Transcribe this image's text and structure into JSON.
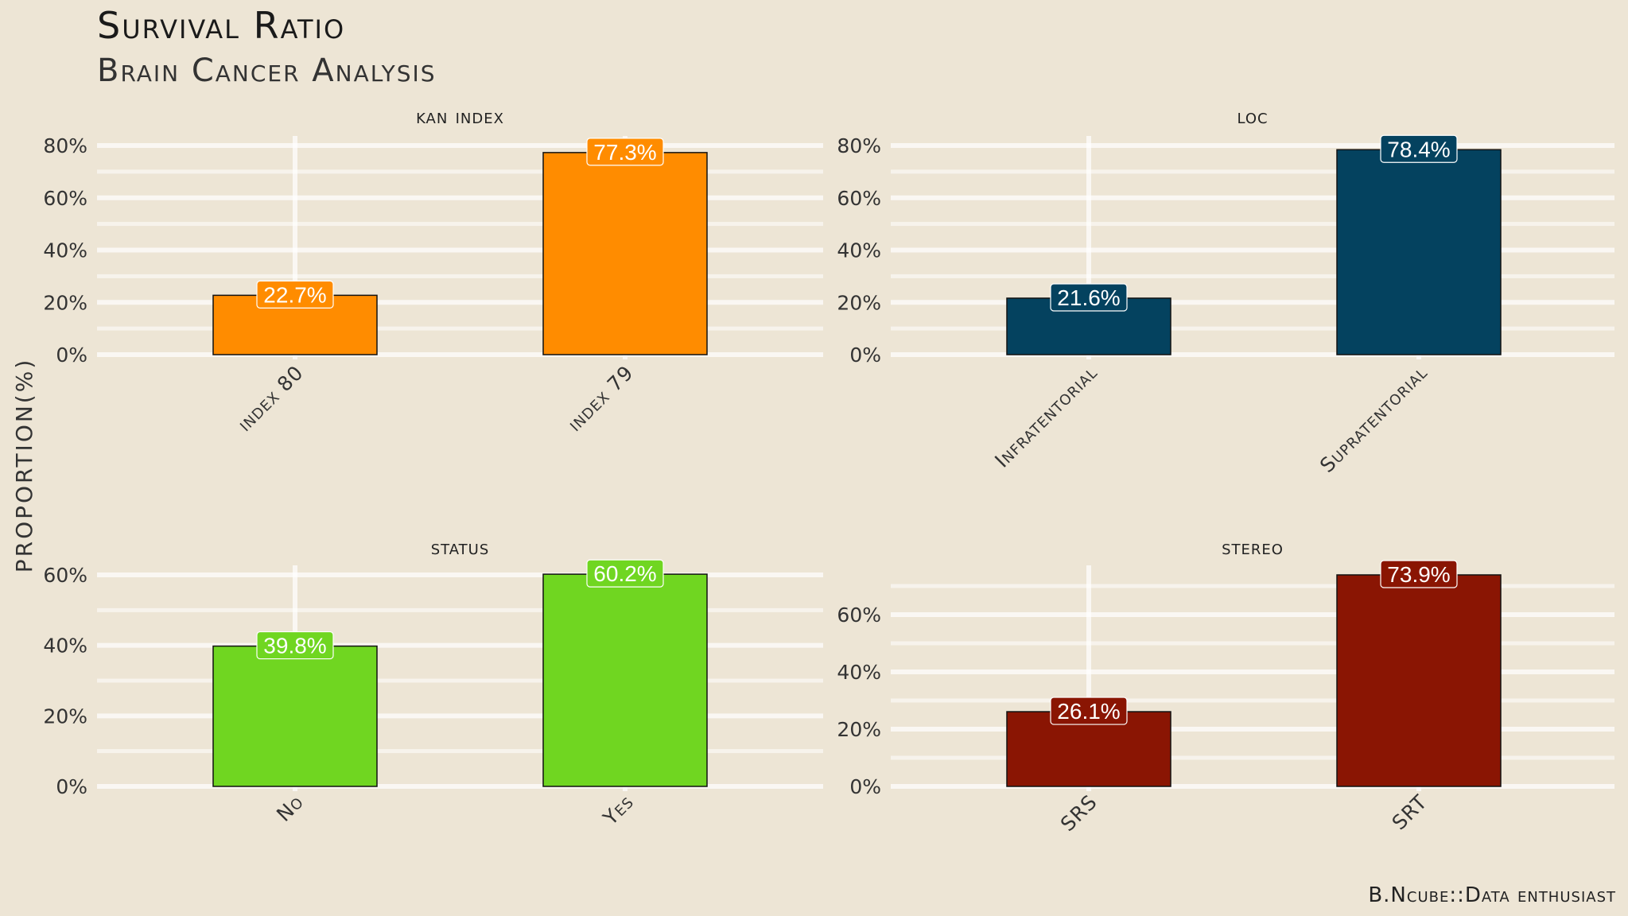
{
  "title": "Survival Ratio",
  "subtitle": "Brain Cancer Analysis",
  "caption": "B.Ncube::Data enthusiast",
  "ylabel": "PROPORTION(%)",
  "chart_data": [
    {
      "type": "bar",
      "panel": "kan index",
      "categories": [
        "index 80",
        "index 79"
      ],
      "values": [
        22.7,
        77.3
      ],
      "labels": [
        "22.7%",
        "77.3%"
      ],
      "ylim": [
        0,
        80
      ],
      "yticks": [
        0,
        20,
        40,
        60,
        80
      ],
      "ytick_labels": [
        "0%",
        "20%",
        "40%",
        "60%",
        "80%"
      ],
      "color": "#ff8c00",
      "grid": true
    },
    {
      "type": "bar",
      "panel": "loc",
      "categories": [
        "Infratentorial",
        "Supratentorial"
      ],
      "values": [
        21.6,
        78.4
      ],
      "labels": [
        "21.6%",
        "78.4%"
      ],
      "ylim": [
        0,
        80
      ],
      "yticks": [
        0,
        20,
        40,
        60,
        80
      ],
      "ytick_labels": [
        "0%",
        "20%",
        "40%",
        "60%",
        "80%"
      ],
      "color": "#04425f",
      "grid": true
    },
    {
      "type": "bar",
      "panel": "status",
      "categories": [
        "No",
        "Yes"
      ],
      "values": [
        39.8,
        60.2
      ],
      "labels": [
        "39.8%",
        "60.2%"
      ],
      "ylim": [
        0,
        60
      ],
      "yticks": [
        0,
        20,
        40,
        60
      ],
      "ytick_labels": [
        "0%",
        "20%",
        "40%",
        "60%"
      ],
      "color": "#70d621",
      "grid": true
    },
    {
      "type": "bar",
      "panel": "stereo",
      "categories": [
        "SRS",
        "SRT"
      ],
      "values": [
        26.1,
        73.9
      ],
      "labels": [
        "26.1%",
        "73.9%"
      ],
      "ylim": [
        0,
        73.9
      ],
      "yticks": [
        0,
        20,
        40,
        60
      ],
      "ytick_labels": [
        "0%",
        "20%",
        "40%",
        "60%"
      ],
      "color": "#8a1503",
      "grid": true
    }
  ]
}
